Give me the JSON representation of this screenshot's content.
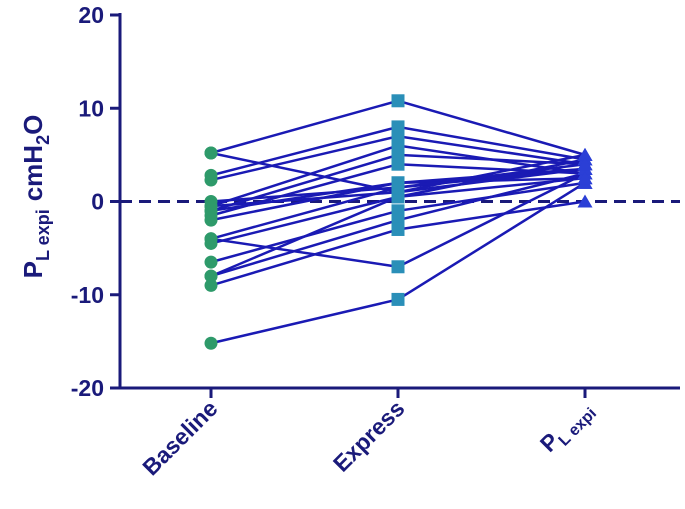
{
  "chart_data": {
    "type": "paired-line",
    "categories": [
      [
        "Baseline"
      ],
      [
        "Express"
      ],
      [
        "P",
        "L expi"
      ]
    ],
    "ylabel": [
      "P",
      "L expi",
      "cmH",
      "2",
      "O"
    ],
    "ylim": [
      -20,
      20
    ],
    "yticks": [
      -20,
      -10,
      0,
      10,
      20
    ],
    "hline": 0,
    "line_color": "#1a1ab4",
    "marker_shapes": [
      "circle",
      "square",
      "triangle"
    ],
    "marker_colors": [
      "#2e9a6a",
      "#2a8fb8",
      "#2b3fd6"
    ],
    "series": [
      {
        "values": [
          5.2,
          10.8,
          5
        ]
      },
      {
        "values": [
          2.8,
          8,
          4.5
        ]
      },
      {
        "values": [
          2.3,
          7,
          4
        ]
      },
      {
        "values": [
          5.2,
          1,
          3.5
        ]
      },
      {
        "values": [
          -0.5,
          6,
          3
        ]
      },
      {
        "values": [
          -1,
          5,
          4
        ]
      },
      {
        "values": [
          -1.5,
          4,
          3
        ]
      },
      {
        "values": [
          -2,
          2,
          2.5
        ]
      },
      {
        "values": [
          -4,
          1.5,
          3.5
        ]
      },
      {
        "values": [
          -4.5,
          0.5,
          4.5
        ]
      },
      {
        "values": [
          -6.5,
          -1,
          2
        ]
      },
      {
        "values": [
          -8,
          -2,
          3
        ]
      },
      {
        "values": [
          -9,
          -3,
          0
        ]
      },
      {
        "values": [
          -4,
          -7,
          3
        ]
      },
      {
        "values": [
          -15.2,
          -10.5,
          2
        ]
      },
      {
        "values": [
          -0.5,
          1,
          5
        ]
      },
      {
        "values": [
          -1,
          2,
          3.5
        ]
      },
      {
        "values": [
          -8,
          0.5,
          2.5
        ]
      },
      {
        "values": [
          0,
          1.5,
          4
        ]
      }
    ]
  }
}
